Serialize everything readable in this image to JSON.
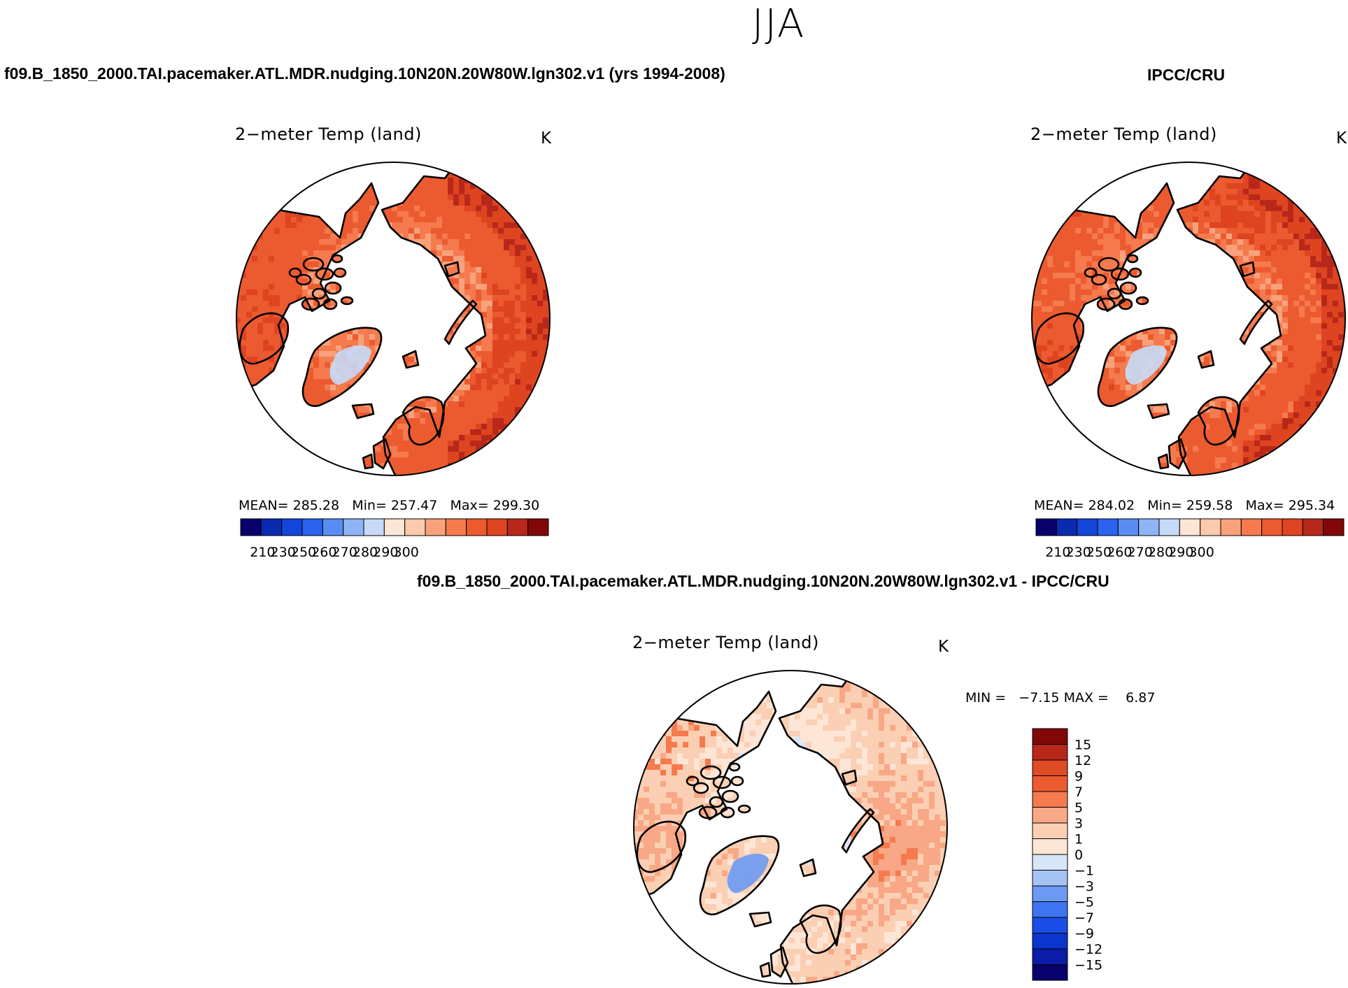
{
  "title": "JJA",
  "colors": {
    "seq": [
      "#08006c",
      "#0a2ab0",
      "#1346da",
      "#2b62ee",
      "#5a8df4",
      "#8fb4f6",
      "#c6daf8",
      "#fde6d6",
      "#fbc9ab",
      "#f8a27c",
      "#f57a4e",
      "#ec5a30",
      "#de4420",
      "#b8281a",
      "#820808"
    ],
    "div": [
      "#08006c",
      "#0a1ca8",
      "#0b35cf",
      "#1a4ee6",
      "#3e74f0",
      "#6b99f3",
      "#a6c3f5",
      "#d7e6f8",
      "#fde6d6",
      "#fbcfb3",
      "#f8a886",
      "#f57a4e",
      "#ec5a30",
      "#e04a24",
      "#b8281a",
      "#820808"
    ],
    "land_model": "#ec5a30",
    "land_obs": "#ef5f34"
  },
  "panels": {
    "left": {
      "case_title": "f09.B_1850_2000.TAI.pacemaker.ATL.MDR.nudging.10N20N.20W80W.lgn302.v1 (yrs 1994-2008)",
      "plot_title": "2−meter Temp (land)",
      "units": "K",
      "mean_label": "MEAN=",
      "mean": "285.28",
      "min_label": "Min=",
      "min": "257.47",
      "max_label": "Max=",
      "max": "299.30"
    },
    "right": {
      "case_title": "IPCC/CRU",
      "plot_title": "2−meter Temp (land)",
      "units": "K",
      "mean_label": "MEAN=",
      "mean": "284.02",
      "min_label": "Min=",
      "min": "259.58",
      "max_label": "Max=",
      "max": "295.34"
    },
    "diff": {
      "case_title": "f09.B_1850_2000.TAI.pacemaker.ATL.MDR.nudging.10N20N.20W80W.lgn302.v1 - IPCC/CRU",
      "plot_title": "2−meter Temp (land)",
      "units": "K",
      "min_label": "MIN =",
      "min": "−7.15",
      "max_label": "MAX =",
      "max": "6.87"
    }
  },
  "chart_data": [
    {
      "type": "heatmap",
      "title": "2−meter Temp (land)",
      "subtitle": "f09.B_1850_2000.TAI.pacemaker.ATL.MDR.nudging.10N20N.20W80W.lgn302.v1 (yrs 1994-2008)",
      "projection": "north polar stereographic",
      "units": "K",
      "colorbar_ticks": [
        "210",
        "230",
        "250",
        "260",
        "270",
        "280",
        "290",
        "300"
      ],
      "stats": {
        "mean": 285.28,
        "min": 257.47,
        "max": 299.3
      }
    },
    {
      "type": "heatmap",
      "title": "2−meter Temp (land)",
      "subtitle": "IPCC/CRU",
      "projection": "north polar stereographic",
      "units": "K",
      "colorbar_ticks": [
        "210",
        "230",
        "250",
        "260",
        "270",
        "280",
        "290",
        "300"
      ],
      "stats": {
        "mean": 284.02,
        "min": 259.58,
        "max": 295.34
      }
    },
    {
      "type": "heatmap",
      "title": "2−meter Temp (land)",
      "subtitle": "f09.B_1850_2000.TAI.pacemaker.ATL.MDR.nudging.10N20N.20W80W.lgn302.v1 - IPCC/CRU",
      "projection": "north polar stereographic",
      "units": "K",
      "colorbar_ticks": [
        "15",
        "12",
        "9",
        "7",
        "5",
        "3",
        "1",
        "0",
        "−1",
        "−3",
        "−5",
        "−7",
        "−9",
        "−12",
        "−15"
      ],
      "stats": {
        "min": -7.15,
        "max": 6.87
      }
    }
  ]
}
